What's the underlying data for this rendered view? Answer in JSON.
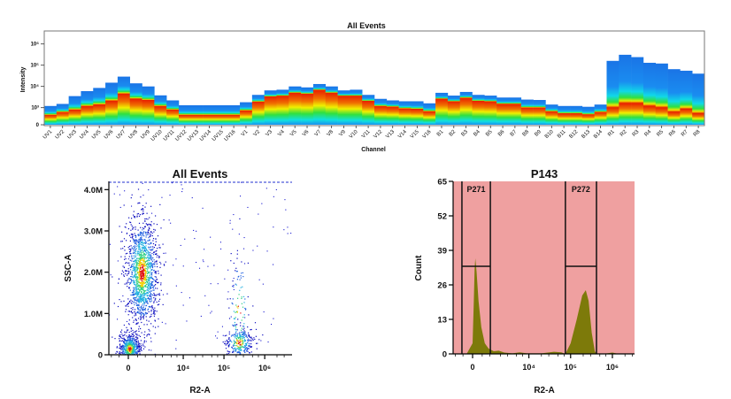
{
  "chart_data": [
    {
      "type": "heatmap",
      "title": "All Events",
      "xlabel": "Channel",
      "ylabel": "Intensity",
      "y_scale": "log",
      "y_ticks": [
        "0",
        "10³",
        "10⁴",
        "10⁵",
        "10⁶"
      ],
      "categories": [
        "UV1",
        "UV2",
        "UV3",
        "UV4",
        "UV5",
        "UV6",
        "UV7",
        "UV8",
        "UV9",
        "UV10",
        "UV11",
        "UV12",
        "UV13",
        "UV14",
        "UV15",
        "UV16",
        "V1",
        "V2",
        "V3",
        "V4",
        "V5",
        "V6",
        "V7",
        "V8",
        "V9",
        "V10",
        "V11",
        "V12",
        "V13",
        "V14",
        "V15",
        "V16",
        "B1",
        "B2",
        "B3",
        "B4",
        "B5",
        "B6",
        "B7",
        "B8",
        "B9",
        "B10",
        "B11",
        "B12",
        "B13",
        "B14",
        "R1",
        "R2",
        "R3",
        "R4",
        "R5",
        "R6",
        "R7",
        "R8"
      ],
      "max_intensity": [
        1200,
        1500,
        3500,
        6000,
        8500,
        15000,
        29000,
        14000,
        10000,
        3800,
        2200,
        1300,
        1300,
        1300,
        1300,
        1300,
        1800,
        4000,
        6500,
        7000,
        10000,
        9000,
        13000,
        10000,
        6500,
        7000,
        4000,
        2600,
        2200,
        2000,
        2000,
        1600,
        5000,
        3700,
        5500,
        4000,
        3700,
        3000,
        3000,
        2400,
        2300,
        1400,
        1200,
        1200,
        1100,
        1400,
        160000,
        310000,
        240000,
        130000,
        120000,
        65000,
        55000,
        40000
      ],
      "peak_intensity": [
        570,
        740,
        880,
        1180,
        1390,
        2100,
        4500,
        2600,
        2250,
        1180,
        880,
        570,
        570,
        570,
        570,
        570,
        830,
        1900,
        3300,
        3600,
        5000,
        4500,
        6800,
        5000,
        3600,
        3600,
        2050,
        1180,
        1100,
        950,
        920,
        780,
        2600,
        1950,
        2900,
        2050,
        1950,
        1500,
        1500,
        1000,
        1000,
        780,
        660,
        660,
        600,
        740,
        1000,
        1600,
        1600,
        1180,
        1000,
        740,
        920,
        660
      ],
      "colors": {
        "high": "#e82000",
        "mid": "#f0f000",
        "low": "#1a7ae8"
      }
    },
    {
      "type": "scatter",
      "title": "All Events",
      "xlabel": "R2-A",
      "ylabel": "SSC-A",
      "x_scale": "biexponential",
      "x_ticks": [
        "0",
        "10⁴",
        "10⁵",
        "10⁶"
      ],
      "y_ticks": [
        "0",
        "1.0M",
        "2.0M",
        "3.0M",
        "4.0M"
      ],
      "xlim": [
        -1200,
        4700000
      ],
      "ylim": [
        0,
        4200000
      ],
      "populations": [
        {
          "x": 740,
          "y": 2000000
        },
        {
          "x": 50,
          "y": 150000
        },
        {
          "x": 230000,
          "y": 300000
        },
        {
          "x": 230000,
          "y": 1000000
        }
      ]
    },
    {
      "type": "area",
      "title": "P143",
      "xlabel": "R2-A",
      "ylabel": "Count",
      "x_scale": "biexponential",
      "x_ticks": [
        "0",
        "10⁴",
        "10⁵",
        "10⁶"
      ],
      "y_ticks": [
        "0",
        "13",
        "26",
        "39",
        "52",
        "65"
      ],
      "xlim": [
        -1160,
        3400000
      ],
      "ylim": [
        0,
        65
      ],
      "x": [
        -600,
        -300,
        0,
        60,
        100,
        135,
        200,
        300,
        450,
        650,
        900,
        1300,
        1800,
        2500,
        4000,
        6000,
        9000,
        20000,
        40000,
        60000,
        75000,
        100000,
        140000,
        190000,
        230000,
        270000,
        320000,
        380000,
        420000,
        600000,
        1000000,
        1400000
      ],
      "values": [
        0,
        0,
        4,
        20,
        32,
        36,
        31,
        20,
        10,
        4,
        2,
        1,
        1.2,
        0.5,
        0.2,
        0.6,
        0.2,
        0.2,
        0.8,
        0.6,
        0,
        4,
        13,
        22,
        24,
        20,
        8,
        1,
        0,
        0,
        0.5,
        0
      ],
      "fill_color": "#7d7a0a",
      "background_color": "#efa0a0",
      "gates": [
        {
          "name": "P271",
          "x_range": [
            -560,
            1030
          ],
          "level": 33
        },
        {
          "name": "P272",
          "x_range": [
            75000,
            416000
          ],
          "level": 33
        }
      ]
    }
  ]
}
